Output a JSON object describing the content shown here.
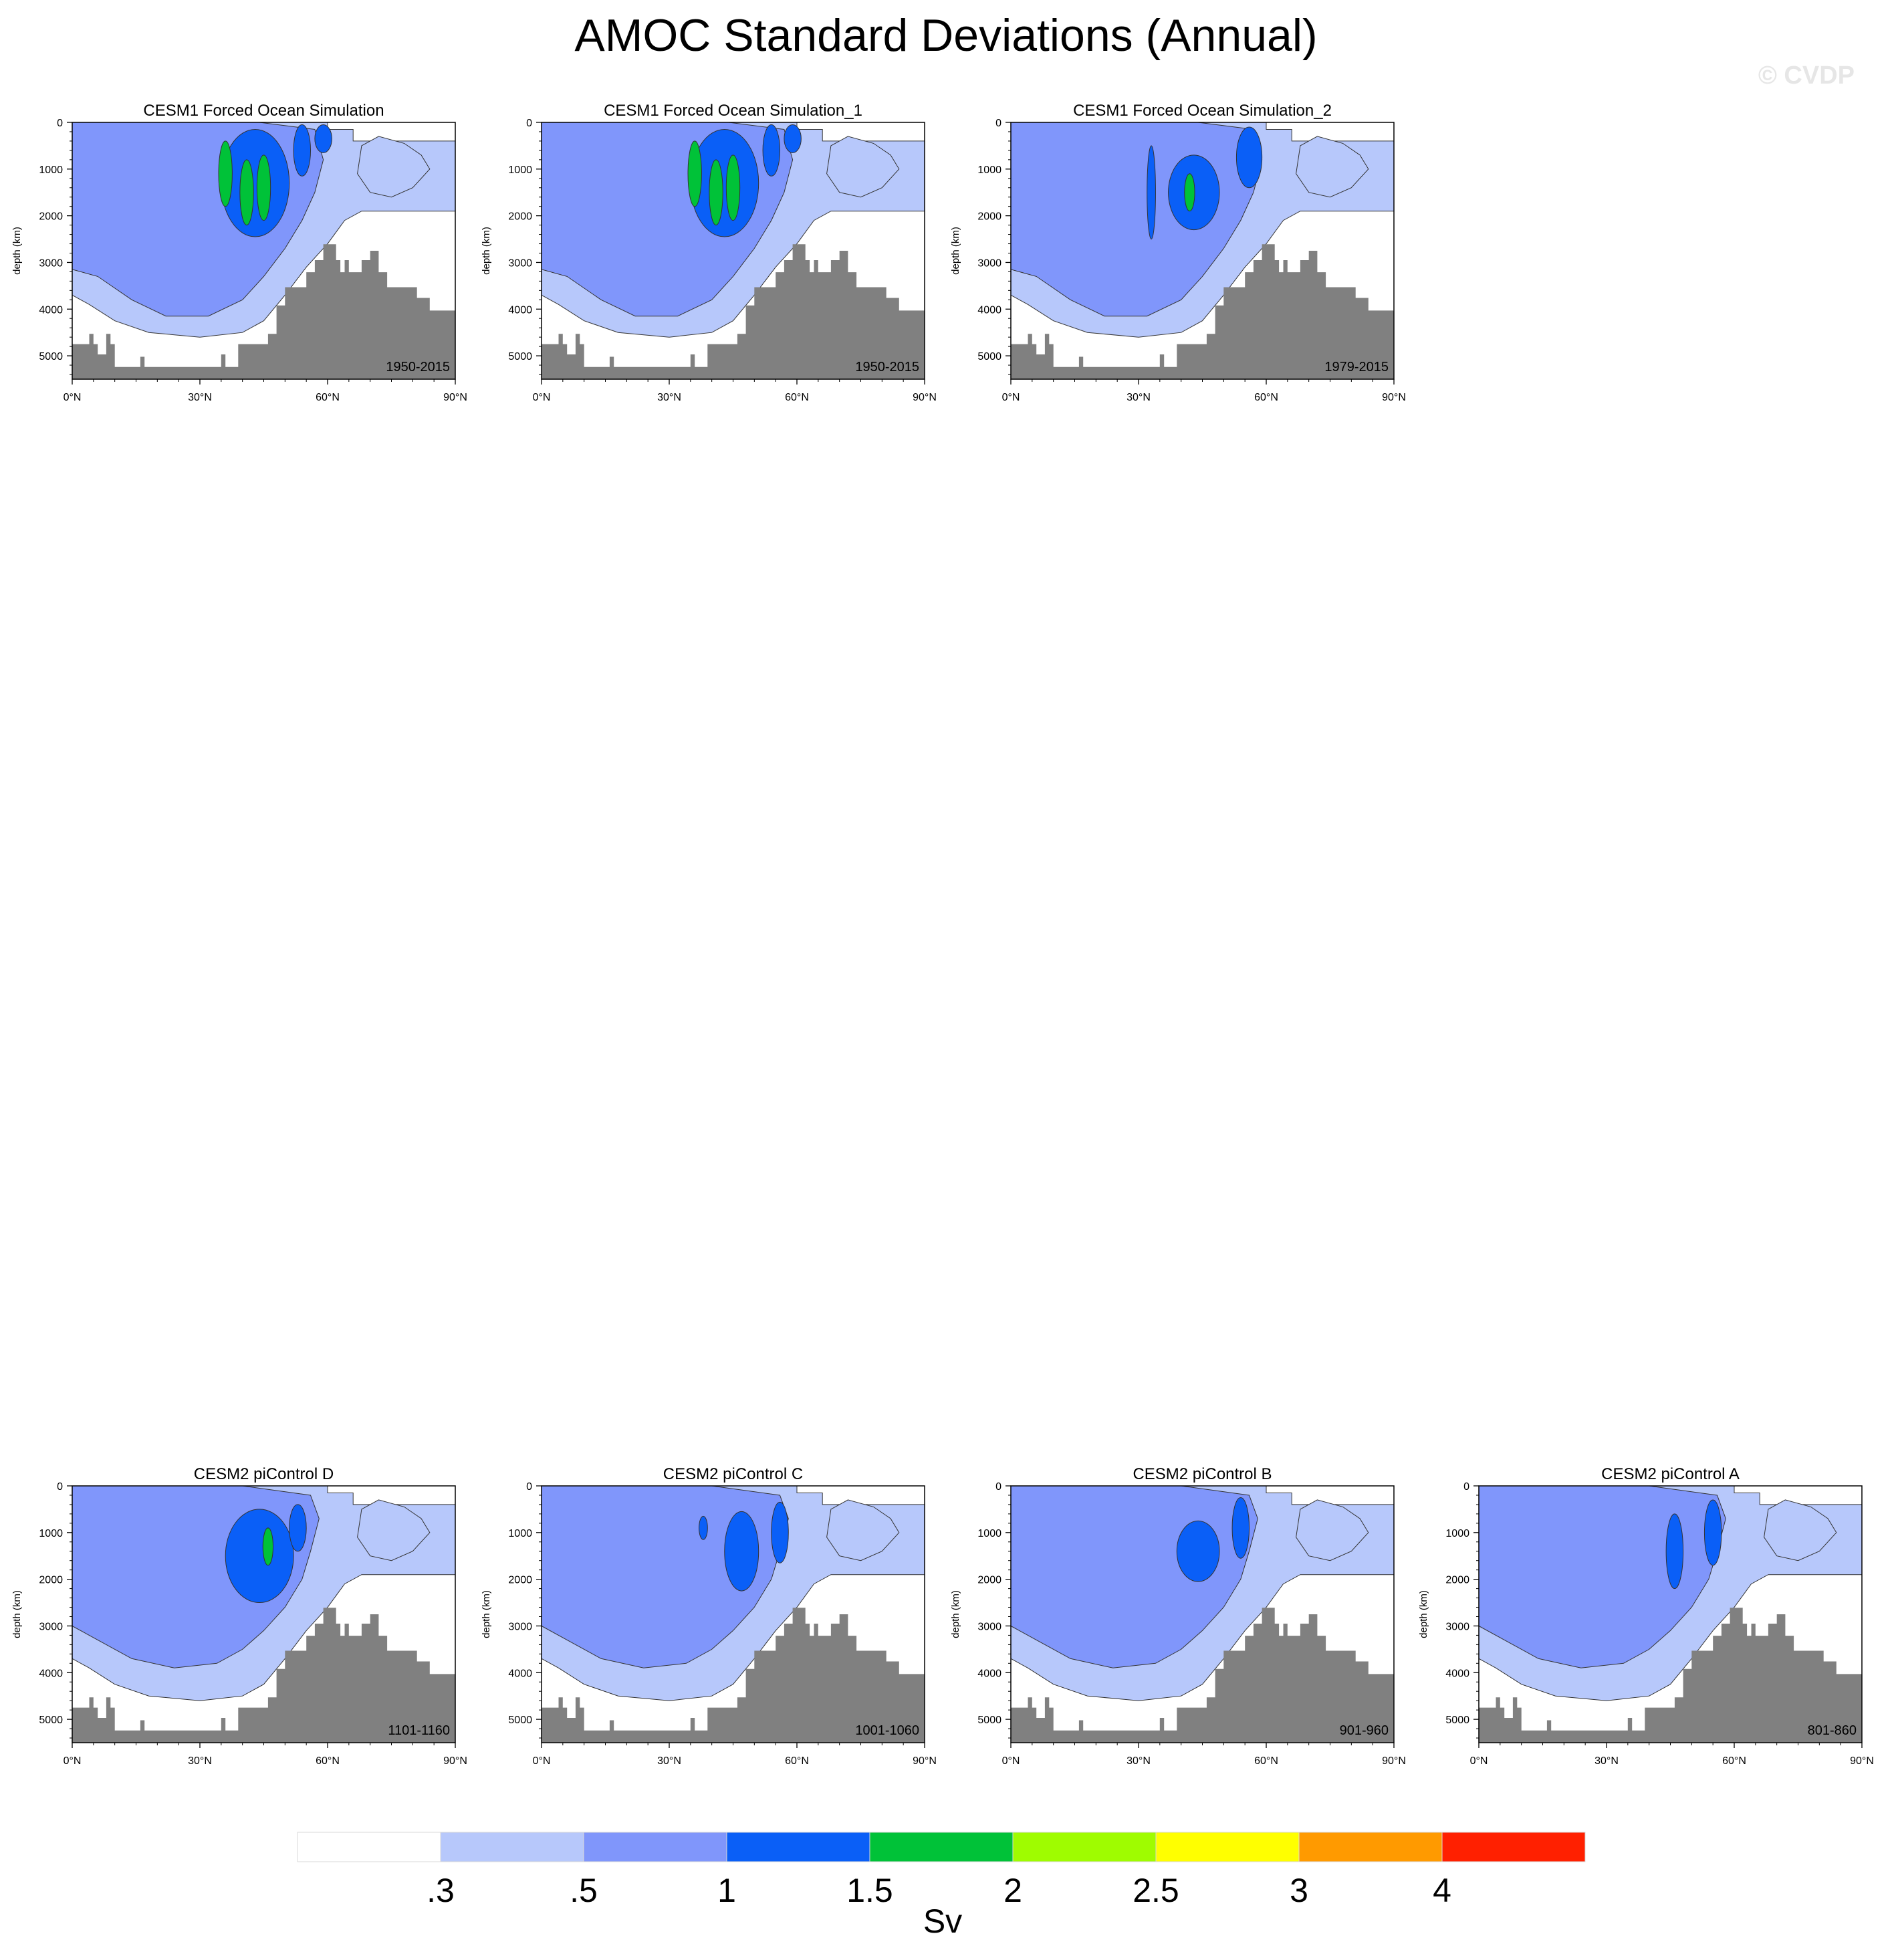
{
  "title": "AMOC Standard Deviations (Annual)",
  "watermark": "© CVDP",
  "colorbar": {
    "unit": "Sv",
    "levels": [
      ".3",
      ".5",
      "1",
      "1.5",
      "2",
      "2.5",
      "3",
      "4"
    ],
    "colors": [
      "#ffffff",
      "#b7c8fb",
      "#8096fb",
      "#0a5ff7",
      "#00c238",
      "#9ffc00",
      "#ffff00",
      "#ff9a00",
      "#ff2000"
    ]
  },
  "colors": {
    "bathymetry": "#808080",
    "contour_line": "#333333"
  },
  "chart_data": [
    {
      "type": "heatmap",
      "title": "CESM1 Forced Ocean Simulation",
      "period": "1950-2015",
      "ylabel": "depth (km)",
      "xticks": [
        "0°N",
        "30°N",
        "60°N",
        "90°N"
      ],
      "yticks": [
        "0",
        "1000",
        "2000",
        "3000",
        "4000",
        "5000"
      ],
      "xlim": [
        0,
        90
      ],
      "ylim": [
        5500,
        0
      ],
      "max_sv": 2.5,
      "strong_cells": [
        {
          "lat": 36,
          "depth": 1100
        },
        {
          "lat": 41,
          "depth": 1500
        },
        {
          "lat": 45,
          "depth": 1400
        }
      ]
    },
    {
      "type": "heatmap",
      "title": "CESM1 Forced Ocean Simulation_1",
      "period": "1950-2015",
      "ylabel": "depth (km)",
      "xticks": [
        "0°N",
        "30°N",
        "60°N",
        "90°N"
      ],
      "yticks": [
        "0",
        "1000",
        "2000",
        "3000",
        "4000",
        "5000"
      ],
      "xlim": [
        0,
        90
      ],
      "ylim": [
        5500,
        0
      ],
      "max_sv": 2.5,
      "strong_cells": [
        {
          "lat": 36,
          "depth": 1100
        },
        {
          "lat": 41,
          "depth": 1500
        },
        {
          "lat": 45,
          "depth": 1400
        }
      ]
    },
    {
      "type": "heatmap",
      "title": "CESM1 Forced Ocean Simulation_2",
      "period": "1979-2015",
      "ylabel": "depth (km)",
      "xticks": [
        "0°N",
        "30°N",
        "60°N",
        "90°N"
      ],
      "yticks": [
        "0",
        "1000",
        "2000",
        "3000",
        "4000",
        "5000"
      ],
      "xlim": [
        0,
        90
      ],
      "ylim": [
        5500,
        0
      ],
      "max_sv": 2.0,
      "strong_cells": [
        {
          "lat": 42,
          "depth": 1500
        }
      ]
    },
    {
      "type": "heatmap",
      "title": "CESM2 piControl D",
      "period": "1101-1160",
      "ylabel": "depth (km)",
      "xticks": [
        "0°N",
        "30°N",
        "60°N",
        "90°N"
      ],
      "yticks": [
        "0",
        "1000",
        "2000",
        "3000",
        "4000",
        "5000"
      ],
      "xlim": [
        0,
        90
      ],
      "ylim": [
        5500,
        0
      ],
      "max_sv": 2.0,
      "strong_cells": [
        {
          "lat": 46,
          "depth": 1300
        }
      ]
    },
    {
      "type": "heatmap",
      "title": "CESM2 piControl C",
      "period": "1001-1060",
      "ylabel": "depth (km)",
      "xticks": [
        "0°N",
        "30°N",
        "60°N",
        "90°N"
      ],
      "yticks": [
        "0",
        "1000",
        "2000",
        "3000",
        "4000",
        "5000"
      ],
      "xlim": [
        0,
        90
      ],
      "ylim": [
        5500,
        0
      ],
      "max_sv": 1.5,
      "strong_cells": []
    },
    {
      "type": "heatmap",
      "title": "CESM2 piControl B",
      "period": "901-960",
      "ylabel": "depth (km)",
      "xticks": [
        "0°N",
        "30°N",
        "60°N",
        "90°N"
      ],
      "yticks": [
        "0",
        "1000",
        "2000",
        "3000",
        "4000",
        "5000"
      ],
      "xlim": [
        0,
        90
      ],
      "ylim": [
        5500,
        0
      ],
      "max_sv": 1.5,
      "strong_cells": []
    },
    {
      "type": "heatmap",
      "title": "CESM2 piControl A",
      "period": "801-860",
      "ylabel": "depth (km)",
      "xticks": [
        "0°N",
        "30°N",
        "60°N",
        "90°N"
      ],
      "yticks": [
        "0",
        "1000",
        "2000",
        "3000",
        "4000",
        "5000"
      ],
      "xlim": [
        0,
        90
      ],
      "ylim": [
        5500,
        0
      ],
      "max_sv": 1.5,
      "strong_cells": []
    }
  ]
}
